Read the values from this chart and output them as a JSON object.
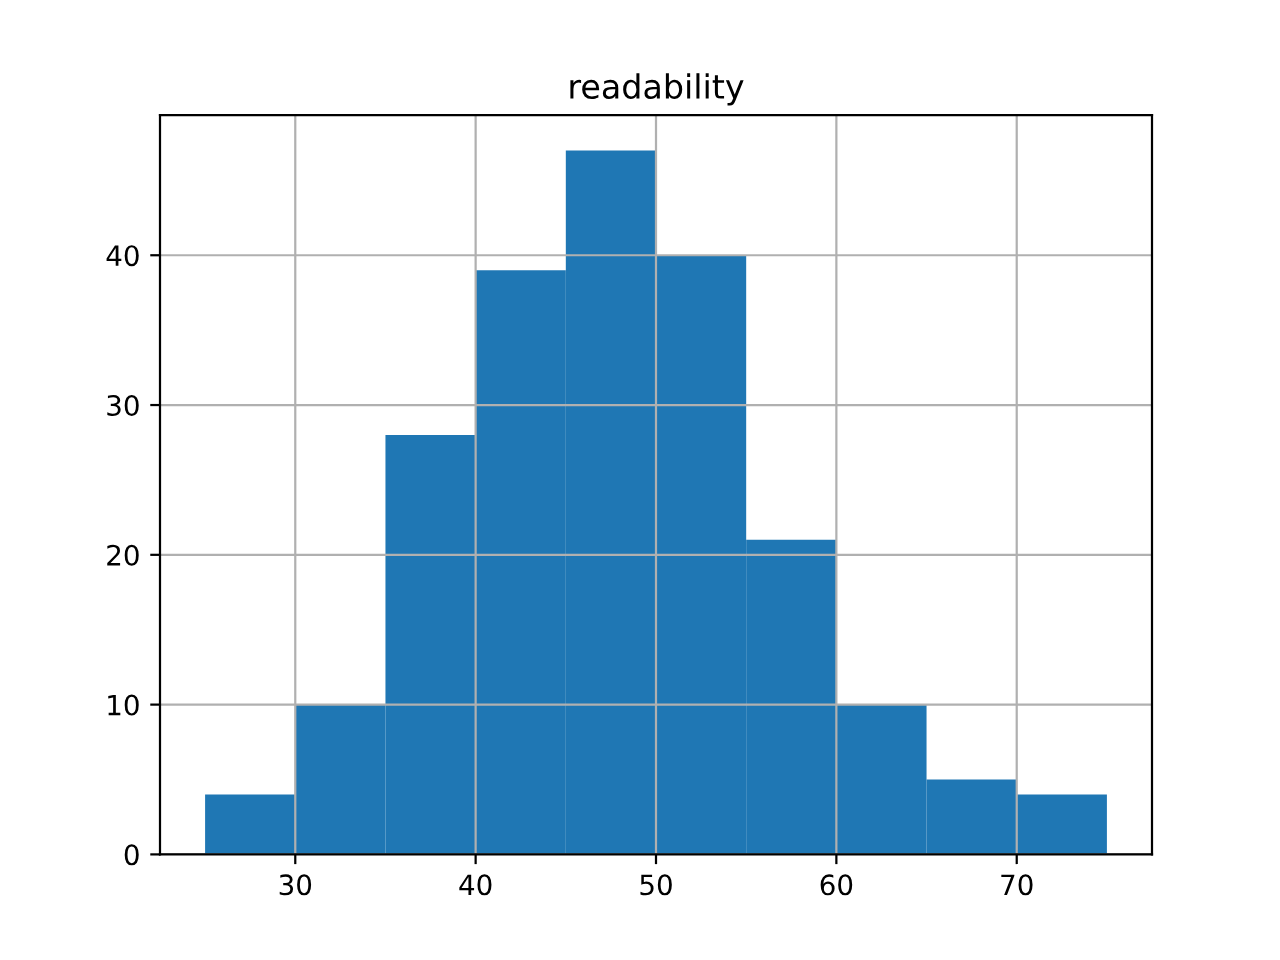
{
  "chart_data": {
    "type": "histogram",
    "title": "readability",
    "bins": [
      25,
      30,
      35,
      40,
      45,
      50,
      55,
      60,
      65,
      70,
      75
    ],
    "values": [
      4,
      10,
      28,
      39,
      47,
      40,
      21,
      10,
      5,
      4
    ],
    "color": "#1f77b4",
    "xlim": [
      22.5,
      77.5
    ],
    "xticks": [
      30,
      40,
      50,
      60,
      70
    ],
    "ylim": [
      0,
      49.35
    ],
    "yticks": [
      0,
      10,
      20,
      30,
      40
    ],
    "grid": true
  }
}
